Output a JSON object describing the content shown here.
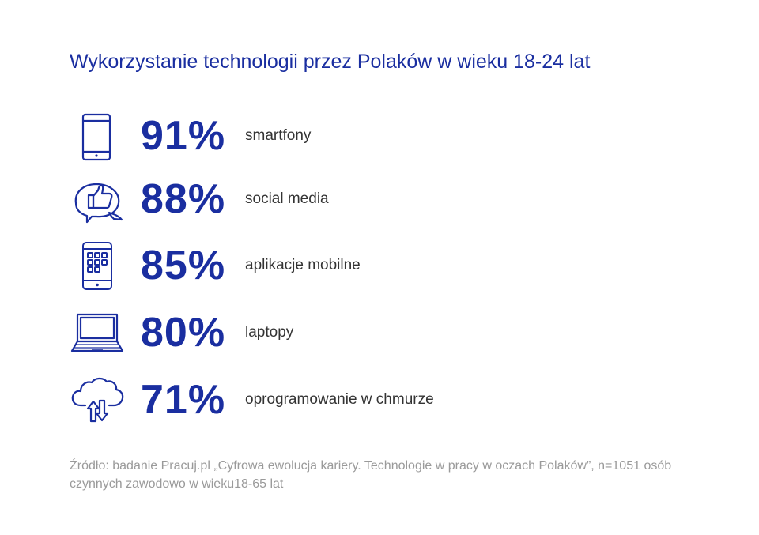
{
  "title": "Wykorzystanie technologii przez Polaków w wieku 18-24 lat",
  "colors": {
    "accent": "#1a2ea0",
    "label": "#333333",
    "source": "#9a9a9a"
  },
  "chart_data": {
    "type": "table",
    "title": "Wykorzystanie technologii przez Polaków w wieku 18-24 lat",
    "unit": "%",
    "items": [
      {
        "icon": "smartphone-icon",
        "value": 91,
        "value_text": "91%",
        "label": "smartfony"
      },
      {
        "icon": "social-media-like-icon",
        "value": 88,
        "value_text": "88%",
        "label": "social media"
      },
      {
        "icon": "mobile-apps-icon",
        "value": 85,
        "value_text": "85%",
        "label": "aplikacje mobilne"
      },
      {
        "icon": "laptop-icon",
        "value": 80,
        "value_text": "80%",
        "label": "laptopy"
      },
      {
        "icon": "cloud-sync-icon",
        "value": 71,
        "value_text": "71%",
        "label": "oprogramowanie w chmurze"
      }
    ]
  },
  "source": {
    "line1": "Źródło: badanie Pracuj.pl „Cyfrowa ewolucja kariery. Technologie w pracy w oczach Polaków”, n=1051 osób",
    "line2": "czynnych zawodowo w wieku18-65 lat"
  }
}
